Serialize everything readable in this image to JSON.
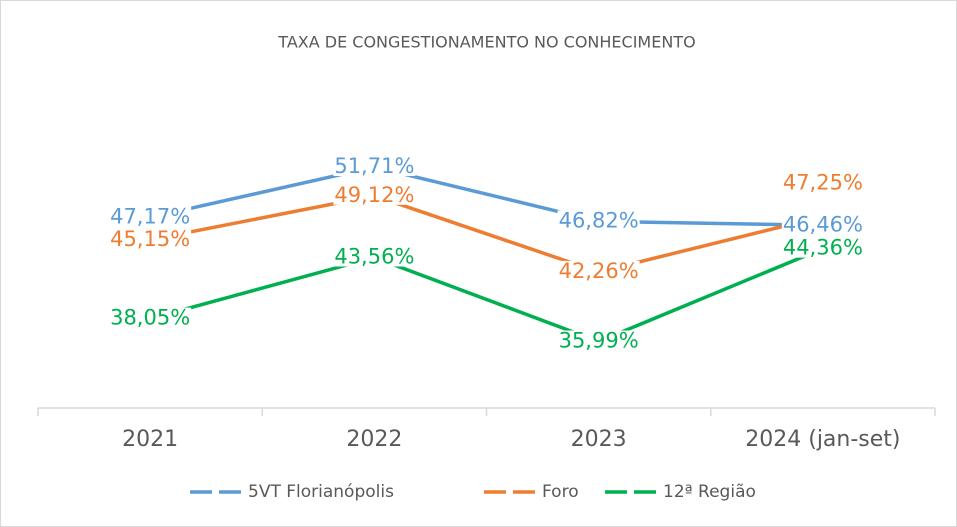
{
  "chart_data": {
    "type": "line",
    "title": "TAXA DE CONGESTIONAMENTO NO CONHECIMENTO",
    "categories": [
      "2021",
      "2022",
      "2023",
      "2024 (jan-set)"
    ],
    "series": [
      {
        "name": "5VT Florianópolis",
        "color": "#5b9bd5",
        "values": [
          47.17,
          51.71,
          46.82,
          46.46
        ],
        "value_labels": [
          "47,17%",
          "51,71%",
          "46,82%",
          "46,46%"
        ]
      },
      {
        "name": "Foro",
        "color": "#ed7d31",
        "values": [
          45.15,
          49.12,
          42.26,
          47.25
        ],
        "value_labels": [
          "45,15%",
          "49,12%",
          "42,26%",
          "47,25%"
        ]
      },
      {
        "name": "12ª Região",
        "color": "#00b050",
        "values": [
          38.05,
          43.56,
          35.99,
          44.36
        ],
        "value_labels": [
          "38,05%",
          "43,56%",
          "35,99%",
          "44,36%"
        ]
      }
    ],
    "ylim": [
      30,
      60
    ],
    "legend": "bottom"
  }
}
